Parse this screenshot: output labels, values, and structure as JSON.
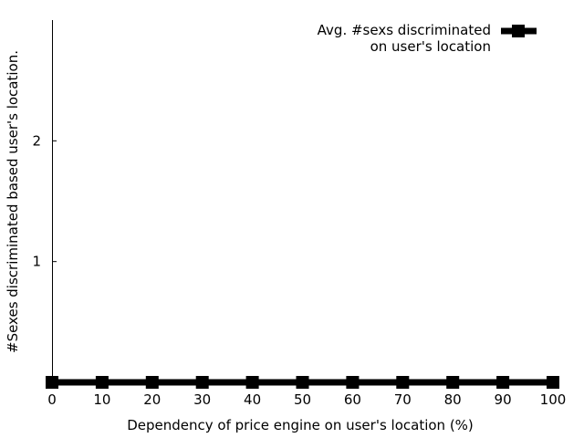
{
  "chart_data": {
    "type": "line",
    "title": "",
    "xlabel": "Dependency of price engine on user's location (%)",
    "ylabel": "#Sexes discriminated based user's location.",
    "x": [
      0,
      10,
      20,
      30,
      40,
      50,
      60,
      70,
      80,
      90,
      100
    ],
    "xlim": [
      0,
      100
    ],
    "xticks": [
      "0",
      "10",
      "20",
      "30",
      "40",
      "50",
      "60",
      "70",
      "80",
      "90",
      "100"
    ],
    "ylim": [
      0,
      3
    ],
    "yticks": [
      "1",
      "2"
    ],
    "ytick_values": [
      1,
      2
    ],
    "grid": false,
    "legend_position": "top-right",
    "series": [
      {
        "name": "Avg. #sexs discriminated on user's location",
        "legend_lines": [
          "Avg. #sexs discriminated",
          "on user's location"
        ],
        "color": "#000000",
        "marker": "square",
        "values": [
          0,
          0,
          0,
          0,
          0,
          0,
          0,
          0,
          0,
          0,
          0
        ]
      }
    ]
  }
}
